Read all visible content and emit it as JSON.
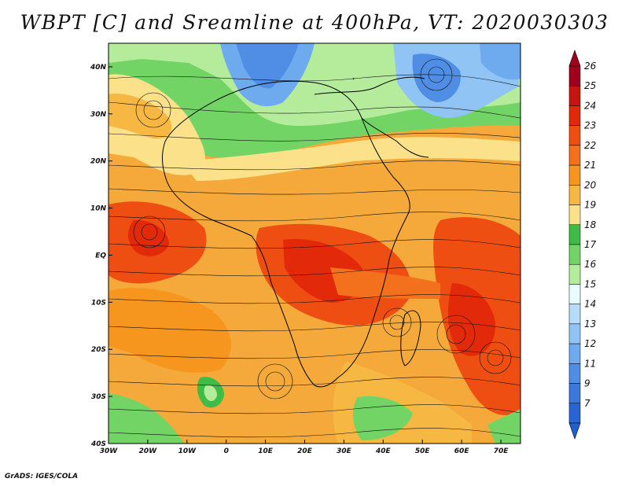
{
  "title": "WBPT [C] and Sreamline at 400hPa, VT: 2020030303",
  "footer": "GrADS: IGES/COLA",
  "map": {
    "lon_range": [
      -30,
      75
    ],
    "lat_range": [
      -40,
      45
    ],
    "lon_ticks": [
      {
        "value": -30,
        "label": "30W"
      },
      {
        "value": -20,
        "label": "20W"
      },
      {
        "value": -10,
        "label": "10W"
      },
      {
        "value": 0,
        "label": "0"
      },
      {
        "value": 10,
        "label": "10E"
      },
      {
        "value": 20,
        "label": "20E"
      },
      {
        "value": 30,
        "label": "30E"
      },
      {
        "value": 40,
        "label": "40E"
      },
      {
        "value": 50,
        "label": "50E"
      },
      {
        "value": 60,
        "label": "60E"
      },
      {
        "value": 70,
        "label": "70E"
      }
    ],
    "lat_ticks": [
      {
        "value": 40,
        "label": "40N"
      },
      {
        "value": 30,
        "label": "30N"
      },
      {
        "value": 20,
        "label": "20N"
      },
      {
        "value": 10,
        "label": "10N"
      },
      {
        "value": 0,
        "label": "EQ"
      },
      {
        "value": -10,
        "label": "10S"
      },
      {
        "value": -20,
        "label": "20S"
      },
      {
        "value": -30,
        "label": "30S"
      },
      {
        "value": -40,
        "label": "40S"
      }
    ]
  },
  "colorbar": {
    "levels": [
      {
        "label": "26",
        "color": "#a0001e"
      },
      {
        "label": "25",
        "color": "#c8140f"
      },
      {
        "label": "24",
        "color": "#e2290a"
      },
      {
        "label": "23",
        "color": "#ef4e12"
      },
      {
        "label": "22",
        "color": "#f3701c"
      },
      {
        "label": "21",
        "color": "#f6961e"
      },
      {
        "label": "20",
        "color": "#f7b743"
      },
      {
        "label": "19",
        "color": "#fbe28a"
      },
      {
        "label": "18",
        "color": "#3fbc46"
      },
      {
        "label": "17",
        "color": "#73d466"
      },
      {
        "label": "16",
        "color": "#b5ec9c"
      },
      {
        "label": "15",
        "color": "#e8fbfe"
      },
      {
        "label": "14",
        "color": "#b6dcfa"
      },
      {
        "label": "13",
        "color": "#90c4f4"
      },
      {
        "label": "12",
        "color": "#6eaaee"
      },
      {
        "label": "11",
        "color": "#4f8ee4"
      },
      {
        "label": "9",
        "color": "#3b78dc"
      },
      {
        "label": "7",
        "color": "#2864d2"
      }
    ],
    "top_color": "#a0001e",
    "bottom_color": "#1f5fd0"
  }
}
